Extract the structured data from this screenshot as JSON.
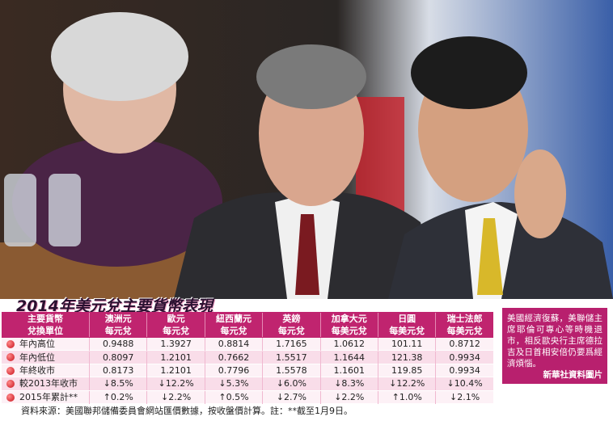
{
  "title": "2014年美元兌主要貨幣表現",
  "table": {
    "header": [
      [
        "主要貨幣",
        "兌換單位"
      ],
      [
        "澳洲元",
        "每元兌"
      ],
      [
        "歐元",
        "每元兌"
      ],
      [
        "紐西蘭元",
        "每元兌"
      ],
      [
        "英鎊",
        "每元兌"
      ],
      [
        "加拿大元",
        "每美元兌"
      ],
      [
        "日圓",
        "每美元兌"
      ],
      [
        "瑞士法郎",
        "每美元兌"
      ]
    ],
    "rows": [
      [
        "年內高位",
        "0.9488",
        "1.3927",
        "0.8814",
        "1.7165",
        "1.0612",
        "101.11",
        "0.8712"
      ],
      [
        "年內低位",
        "0.8097",
        "1.2101",
        "0.7662",
        "1.5517",
        "1.1644",
        "121.38",
        "0.9934"
      ],
      [
        "年終收市",
        "0.8173",
        "1.2101",
        "0.7796",
        "1.5578",
        "1.1601",
        "119.85",
        "0.9934"
      ],
      [
        "較2013年收市",
        "↓8.5%",
        "↓12.2%",
        "↓5.3%",
        "↓6.0%",
        "↓8.3%",
        "↓12.2%",
        "↓10.4%"
      ],
      [
        "2015年累計**",
        "↑0.2%",
        "↓2.2%",
        "↑0.5%",
        "↓2.7%",
        "↓2.2%",
        "↑1.0%",
        "↓2.1%"
      ]
    ]
  },
  "note": "資料來源：美國聯邦儲備委員會網站匯價數據，按收盤價計算。註：**截至1月9日。",
  "caption": {
    "text": "美國經濟復蘇，美聯儲主席耶倫可專心等時機退市，相反歐央行主席德拉吉及日首相安倍仍要爲經濟煩惱。",
    "credit": "新華社資料圖片"
  }
}
